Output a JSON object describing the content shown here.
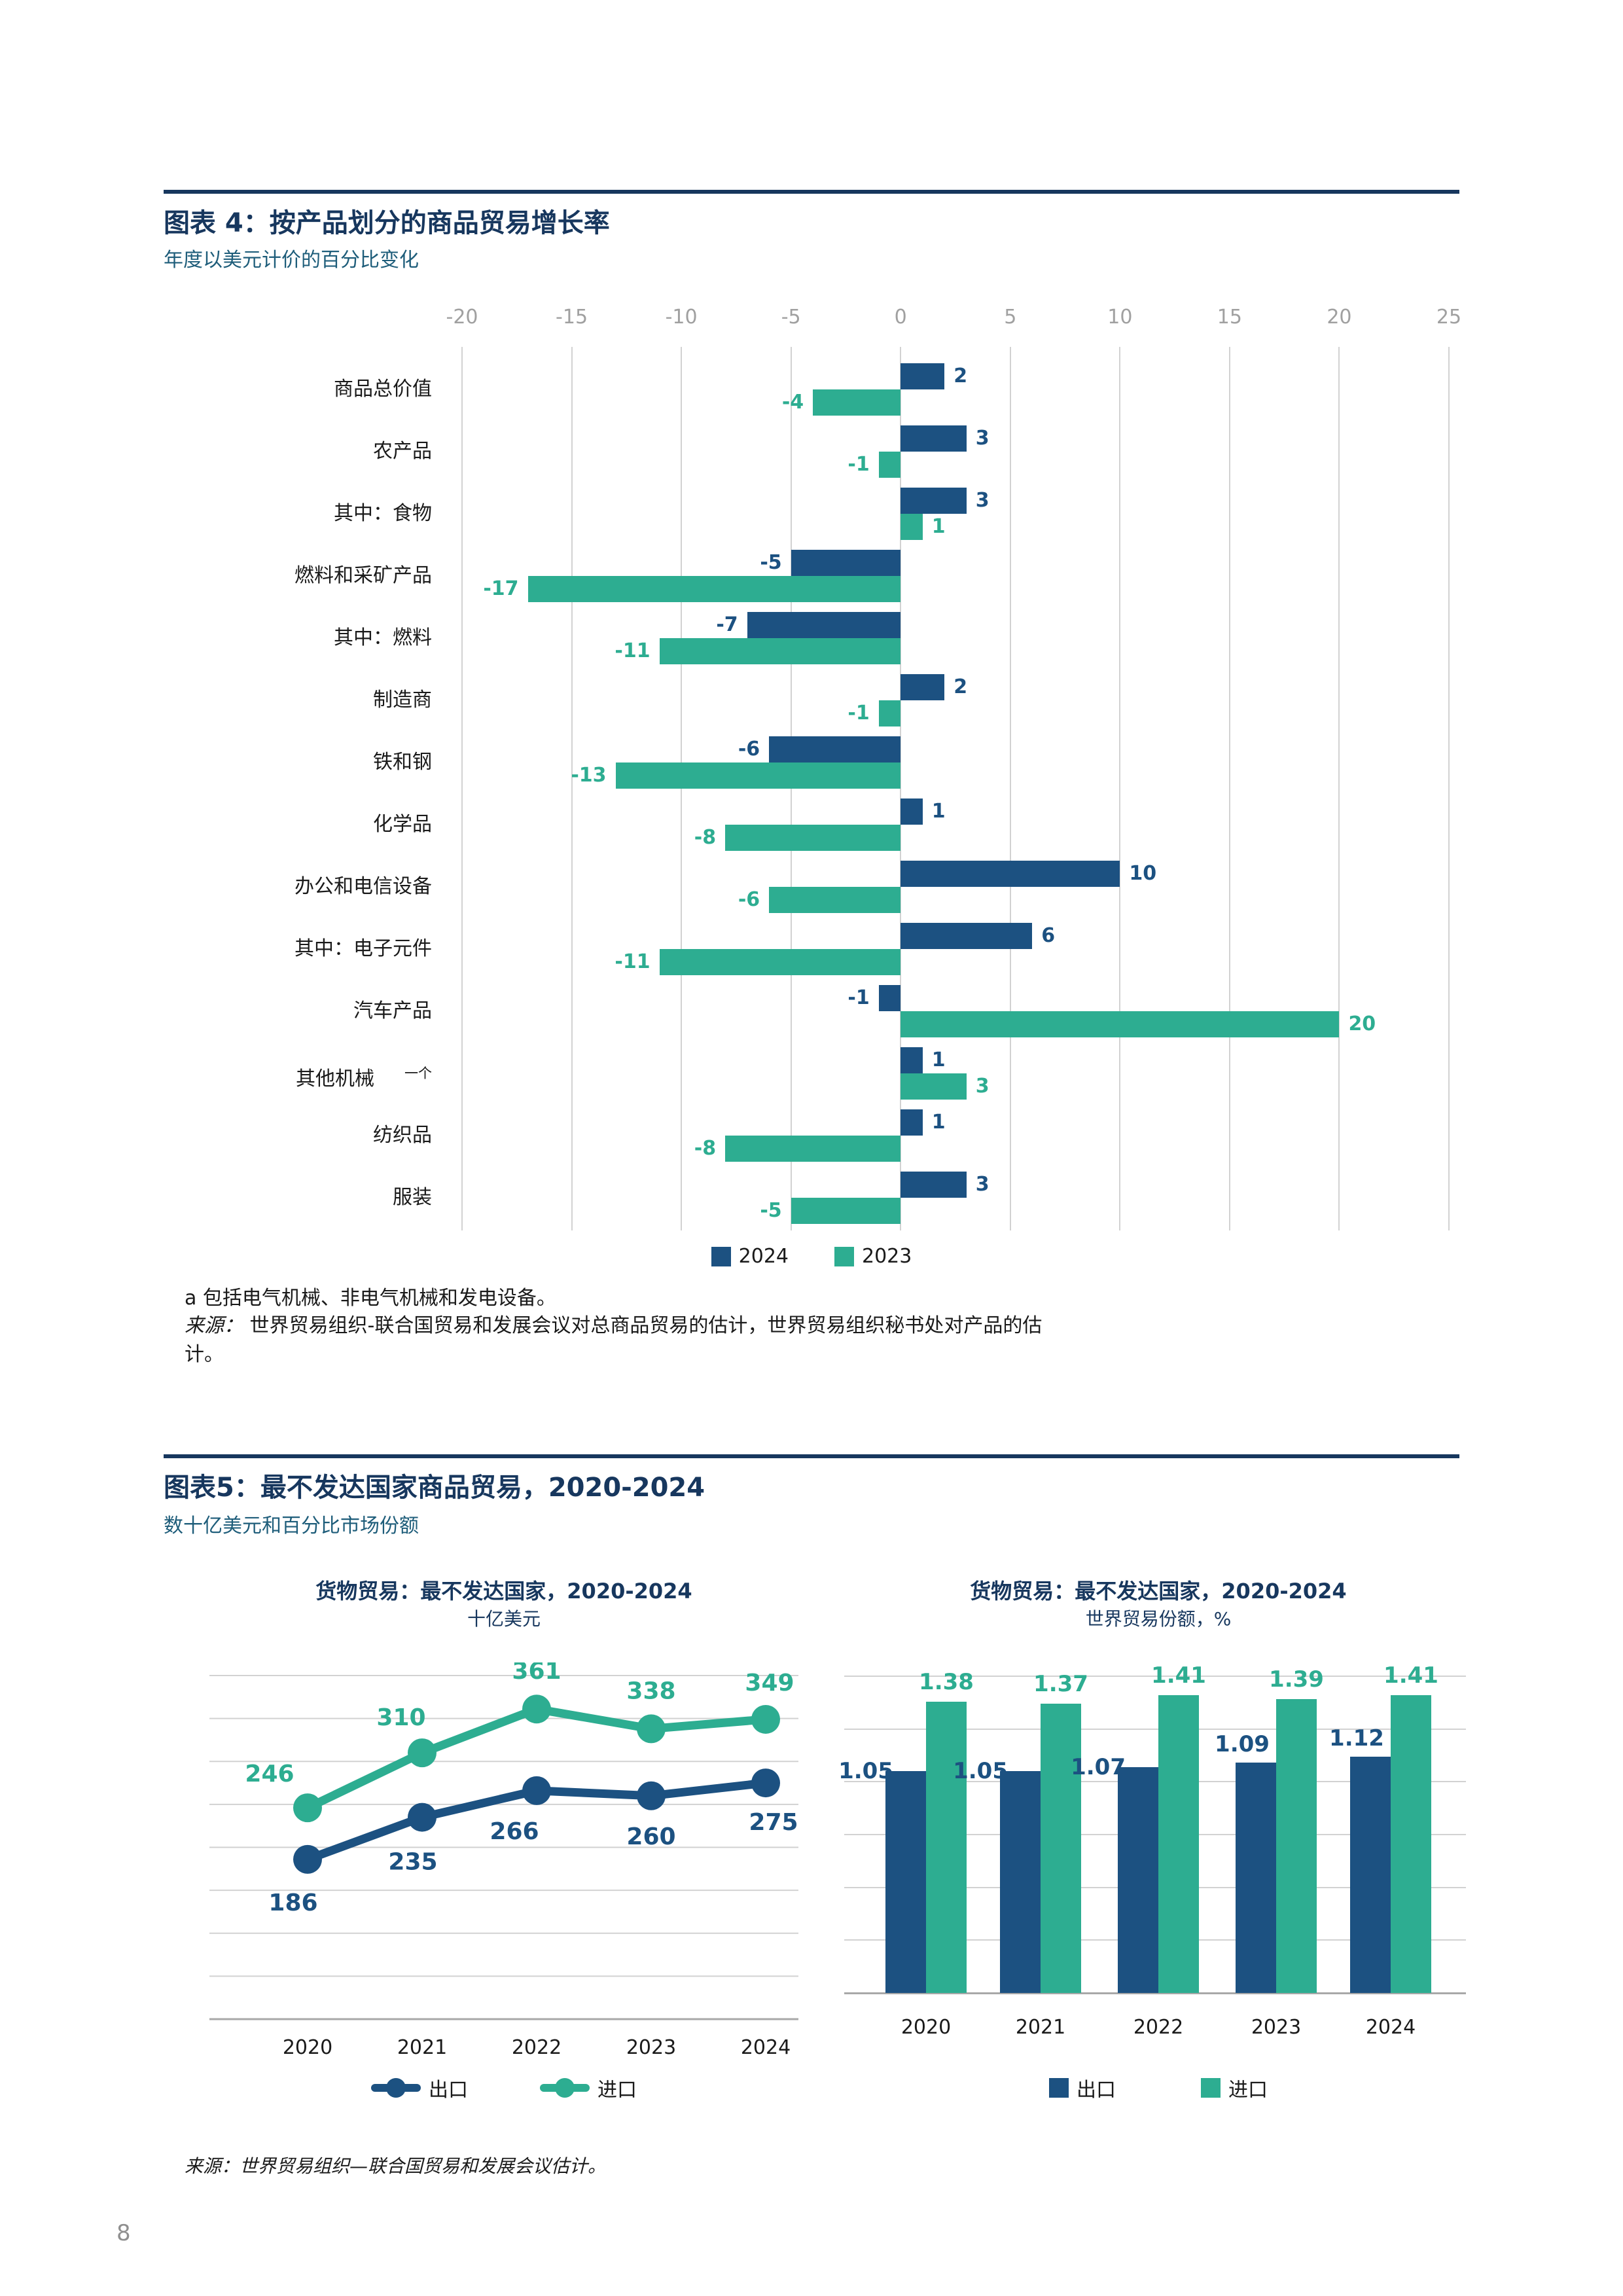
{
  "page": {
    "number": "8"
  },
  "figure4": {
    "title": "图表 4：按产品划分的商品贸易增长率",
    "subtitle": "年度以美元计价的百分比变化",
    "footnote_a": "a 包括电气机械、非电气机械和发电设备。",
    "source_label": "来源：",
    "source_text": "世界贸易组织-联合国贸易和发展会议对总商品贸易的估计，世界贸易组织秘书处对产品的估计。"
  },
  "figure5": {
    "title": "图表5：最不发达国家商品贸易，2020-2024",
    "subtitle": "数十亿美元和百分比市场份额",
    "source": "来源：世界贸易组织—联合国贸易和发展会议估计。"
  },
  "colors": {
    "navy": "#17375e",
    "blue": "#1c5181",
    "teal": "#2dad91",
    "gridline": "#d2d2d2",
    "tick_gray": "#a0a0a0"
  },
  "chart_data": [
    {
      "type": "bar",
      "orientation": "horizontal",
      "title": "图表 4：按产品划分的商品贸易增长率",
      "subtitle": "年度以美元计价的百分比变化",
      "categories": [
        "商品总价值",
        "农产品",
        "其中：食物",
        "燃料和采矿产品",
        "其中：燃料",
        "制造商",
        "铁和钢",
        "化学品",
        "办公和电信设备",
        "其中：电子元件",
        "汽车产品",
        "其他机械",
        "纺织品",
        "服装"
      ],
      "category_note_marker": {
        "index": 11,
        "text": "一个"
      },
      "series": [
        {
          "name": "2024",
          "color_key": "blue",
          "values": [
            2,
            3,
            3,
            -5,
            -7,
            2,
            -6,
            1,
            10,
            6,
            -1,
            1,
            1,
            3
          ]
        },
        {
          "name": "2023",
          "color_key": "teal",
          "values": [
            -4,
            -1,
            1,
            -17,
            -11,
            -1,
            -13,
            -8,
            -6,
            -11,
            20,
            3,
            -8,
            -5
          ]
        }
      ],
      "xlim": [
        -20,
        25
      ],
      "xticks": [
        -20,
        -15,
        -10,
        -5,
        0,
        5,
        10,
        15,
        20,
        25
      ],
      "grid": true,
      "legend_position": "bottom"
    },
    {
      "type": "line",
      "title": "货物贸易：最不发达国家，2020-2024",
      "subtitle": "十亿美元",
      "x": [
        "2020",
        "2021",
        "2022",
        "2023",
        "2024"
      ],
      "series": [
        {
          "name": "出口",
          "color_key": "blue",
          "values": [
            186,
            235,
            266,
            260,
            275
          ]
        },
        {
          "name": "进口",
          "color_key": "teal",
          "values": [
            246,
            310,
            361,
            338,
            349
          ]
        }
      ],
      "ylim": [
        0,
        400
      ],
      "grid_step": 50,
      "grid": true,
      "legend_position": "bottom"
    },
    {
      "type": "bar",
      "orientation": "vertical",
      "title": "货物贸易：最不发达国家，2020-2024",
      "subtitle": "世界贸易份额，%",
      "categories": [
        "2020",
        "2021",
        "2022",
        "2023",
        "2024"
      ],
      "series": [
        {
          "name": "出口",
          "color_key": "blue",
          "values": [
            1.05,
            1.05,
            1.07,
            1.09,
            1.12
          ]
        },
        {
          "name": "进口",
          "color_key": "teal",
          "values": [
            1.38,
            1.37,
            1.41,
            1.39,
            1.41
          ]
        }
      ],
      "ylim": [
        0,
        1.5
      ],
      "grid_step": 0.25,
      "grid": true,
      "legend_position": "bottom"
    }
  ]
}
